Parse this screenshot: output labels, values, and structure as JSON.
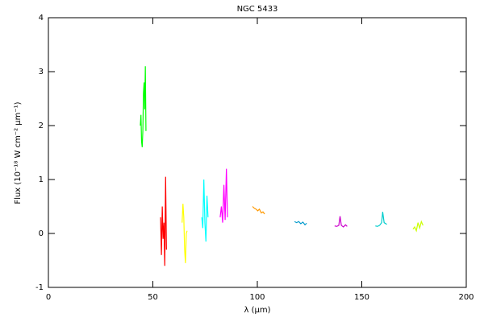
{
  "chart_data": {
    "type": "line",
    "title": "NGC 5433",
    "xlabel": "λ (μm)",
    "ylabel": "Flux (10⁻¹⁸ W cm⁻² μm⁻¹)",
    "xlim": [
      0,
      200
    ],
    "xticks": [
      0,
      50,
      100,
      150,
      200
    ],
    "ylim": [
      -1,
      4
    ],
    "yticks": [
      -1,
      0,
      1,
      2,
      3,
      4
    ],
    "grid": false,
    "series": [
      {
        "color": "#00ff00",
        "x": [
          44.0,
          44.3,
          44.6,
          44.9,
          45.2,
          45.5,
          45.8,
          46.1,
          46.4,
          46.7
        ],
        "values": [
          2.0,
          2.2,
          1.7,
          1.6,
          1.9,
          2.6,
          2.8,
          2.3,
          3.1,
          1.9
        ]
      },
      {
        "color": "#ff0000",
        "x": [
          53.7,
          54.1,
          54.5,
          54.9,
          55.3,
          55.7,
          56.1,
          56.5
        ],
        "values": [
          0.3,
          -0.4,
          0.5,
          -0.1,
          0.2,
          -0.6,
          1.05,
          -0.3
        ]
      },
      {
        "color": "#ffff00",
        "x": [
          64.0,
          64.4,
          64.8,
          65.2,
          65.6,
          66.0,
          66.4
        ],
        "values": [
          0.2,
          0.55,
          0.3,
          -0.3,
          -0.55,
          0.0,
          0.05
        ]
      },
      {
        "color": "#00ffff",
        "x": [
          73.4,
          73.9,
          74.4,
          74.9,
          75.4,
          75.9,
          76.4
        ],
        "values": [
          0.3,
          0.1,
          1.0,
          0.2,
          -0.15,
          0.7,
          0.3
        ]
      },
      {
        "color": "#ff00ff",
        "x": [
          82.2,
          82.8,
          83.4,
          84.0,
          84.6,
          85.2,
          85.7
        ],
        "values": [
          0.3,
          0.5,
          0.2,
          0.9,
          0.25,
          1.2,
          0.3
        ]
      },
      {
        "color": "#ff9900",
        "x": [
          97.7,
          98.5,
          99.4,
          100.2,
          101.0,
          101.9,
          102.7,
          103.5
        ],
        "values": [
          0.5,
          0.47,
          0.45,
          0.42,
          0.45,
          0.38,
          0.4,
          0.36
        ]
      },
      {
        "color": "#0099cc",
        "x": [
          117.8,
          118.8,
          119.8,
          120.8,
          121.8,
          122.8,
          123.6
        ],
        "values": [
          0.22,
          0.2,
          0.22,
          0.18,
          0.21,
          0.16,
          0.19
        ]
      },
      {
        "color": "#cc00cc",
        "x": [
          137.0,
          138.0,
          139.0,
          139.6,
          140.2,
          141.2,
          142.2,
          143.0
        ],
        "values": [
          0.14,
          0.13,
          0.15,
          0.32,
          0.15,
          0.12,
          0.16,
          0.13
        ]
      },
      {
        "color": "#00cccc",
        "x": [
          156.5,
          157.5,
          158.5,
          159.5,
          160.0,
          160.7,
          161.5,
          162.0
        ],
        "values": [
          0.14,
          0.13,
          0.15,
          0.2,
          0.4,
          0.2,
          0.18,
          0.17
        ]
      },
      {
        "color": "#ccff00",
        "x": [
          174.5,
          175.3,
          176.1,
          176.9,
          177.7,
          178.5,
          179.3
        ],
        "values": [
          0.08,
          0.12,
          0.05,
          0.2,
          0.1,
          0.22,
          0.15
        ]
      }
    ]
  }
}
